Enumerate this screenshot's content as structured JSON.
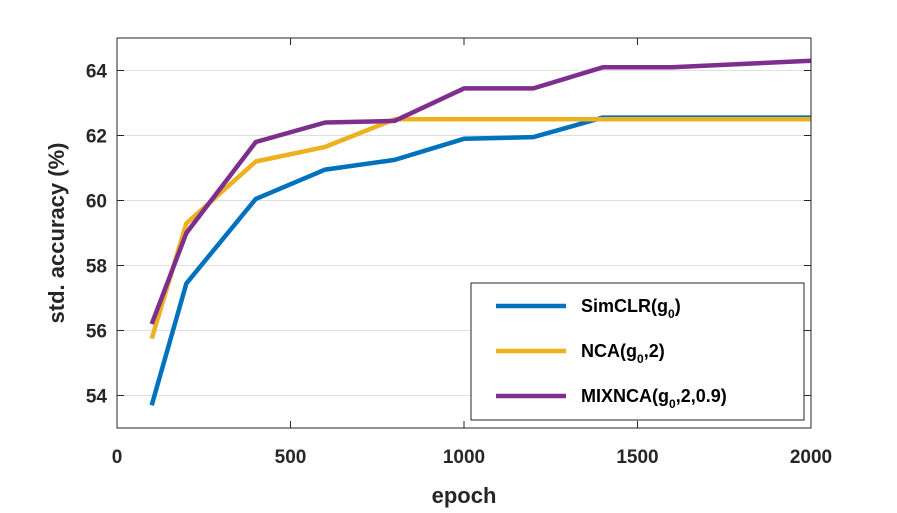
{
  "chart_data": {
    "type": "line",
    "title": "",
    "xlabel": "epoch",
    "ylabel": "std. accuracy (%)",
    "xlim": [
      0,
      2000
    ],
    "ylim": [
      53,
      65
    ],
    "xticks": [
      0,
      500,
      1000,
      1500,
      2000
    ],
    "xtick_labels": [
      "0",
      "500",
      "1000",
      "1500",
      "2000"
    ],
    "yticks": [
      54,
      56,
      58,
      60,
      62,
      64
    ],
    "ytick_labels": [
      "54",
      "56",
      "58",
      "60",
      "62",
      "64"
    ],
    "grid": "horizontal",
    "legend_position": "bottom-right",
    "series": [
      {
        "name": "SimCLR(g0)",
        "legend": {
          "main": "SimCLR(g",
          "sub": "0",
          "suffix": ")"
        },
        "color": "#0072BD",
        "x": [
          100,
          200,
          400,
          600,
          800,
          1000,
          1200,
          1400,
          1600,
          1800,
          2000
        ],
        "y": [
          53.7,
          57.45,
          60.05,
          60.95,
          61.25,
          61.9,
          61.95,
          62.55,
          62.55,
          62.55,
          62.55
        ]
      },
      {
        "name": "NCA(g0,2)",
        "legend": {
          "main": "NCA(g",
          "sub": "0",
          "suffix": ",2)"
        },
        "color": "#EDB120",
        "x": [
          100,
          200,
          400,
          600,
          800,
          1000,
          1200,
          1400,
          1600,
          1800,
          2000
        ],
        "y": [
          55.75,
          59.3,
          61.2,
          61.65,
          62.5,
          62.5,
          62.5,
          62.5,
          62.5,
          62.5,
          62.5
        ]
      },
      {
        "name": "MIXNCA(g0,2,0.9)",
        "legend": {
          "main": "MIXNCA(g",
          "sub": "0",
          "suffix": ",2,0.9)"
        },
        "color": "#7E2F8E",
        "x": [
          100,
          200,
          400,
          600,
          800,
          1000,
          1200,
          1400,
          1600,
          1800,
          2000
        ],
        "y": [
          56.2,
          59.0,
          61.8,
          62.4,
          62.45,
          63.45,
          63.45,
          64.1,
          64.1,
          64.2,
          64.3
        ]
      }
    ]
  }
}
